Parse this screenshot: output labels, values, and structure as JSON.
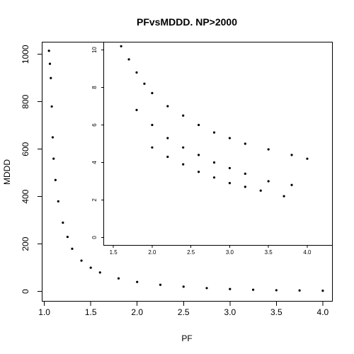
{
  "chart_data": [
    {
      "type": "scatter",
      "title": "PFvsMDDD. NP>2000",
      "xlabel": "PF",
      "ylabel": "MDDD",
      "xticks": [
        "1.0",
        "1.5",
        "2.0",
        "2.5",
        "3.0",
        "3.5",
        "4.0"
      ],
      "yticks": [
        "0",
        "200",
        "400",
        "600",
        "800",
        "1000"
      ],
      "xlim": [
        0.98,
        4.1
      ],
      "ylim": [
        -40,
        1050
      ],
      "color": "#000000",
      "grid": false,
      "points": [
        [
          1.05,
          1015
        ],
        [
          1.06,
          960
        ],
        [
          1.07,
          900
        ],
        [
          1.08,
          780
        ],
        [
          1.09,
          650
        ],
        [
          1.1,
          560
        ],
        [
          1.12,
          470
        ],
        [
          1.15,
          380
        ],
        [
          1.2,
          290
        ],
        [
          1.25,
          230
        ],
        [
          1.3,
          180
        ],
        [
          1.4,
          130
        ],
        [
          1.5,
          100
        ],
        [
          1.6,
          80
        ],
        [
          1.8,
          55
        ],
        [
          2.0,
          40
        ],
        [
          2.25,
          28
        ],
        [
          2.5,
          20
        ],
        [
          2.75,
          14
        ],
        [
          3.0,
          10
        ],
        [
          3.25,
          7
        ],
        [
          3.5,
          5
        ],
        [
          3.75,
          4
        ],
        [
          4.0,
          3
        ]
      ]
    },
    {
      "type": "scatter",
      "title": "",
      "xlabel": "",
      "ylabel": "",
      "xticks": [
        "1.5",
        "2.0",
        "2.5",
        "3.0",
        "3.5",
        "4.0"
      ],
      "yticks": [
        "0",
        "2",
        "4",
        "6",
        "8",
        "10"
      ],
      "xlim": [
        1.38,
        4.32
      ],
      "ylim": [
        -0.4,
        10.4
      ],
      "color": "#000000",
      "grid": false,
      "points": [
        [
          1.6,
          10.2
        ],
        [
          1.7,
          9.5
        ],
        [
          1.8,
          8.8
        ],
        [
          1.9,
          8.2
        ],
        [
          2.0,
          7.7
        ],
        [
          2.2,
          7.0
        ],
        [
          2.4,
          6.5
        ],
        [
          2.6,
          6.0
        ],
        [
          2.8,
          5.6
        ],
        [
          3.0,
          5.3
        ],
        [
          3.2,
          5.0
        ],
        [
          3.5,
          4.7
        ],
        [
          3.8,
          4.4
        ],
        [
          4.0,
          4.2
        ],
        [
          1.8,
          6.8
        ],
        [
          2.0,
          6.0
        ],
        [
          2.2,
          5.3
        ],
        [
          2.4,
          4.8
        ],
        [
          2.6,
          4.4
        ],
        [
          2.8,
          4.0
        ],
        [
          3.0,
          3.7
        ],
        [
          3.2,
          3.4
        ],
        [
          3.5,
          3.0
        ],
        [
          3.8,
          2.8
        ],
        [
          2.0,
          4.8
        ],
        [
          2.2,
          4.3
        ],
        [
          2.4,
          3.9
        ],
        [
          2.6,
          3.5
        ],
        [
          2.8,
          3.2
        ],
        [
          3.0,
          2.9
        ],
        [
          3.2,
          2.7
        ],
        [
          3.4,
          2.5
        ],
        [
          3.7,
          2.2
        ]
      ]
    }
  ]
}
